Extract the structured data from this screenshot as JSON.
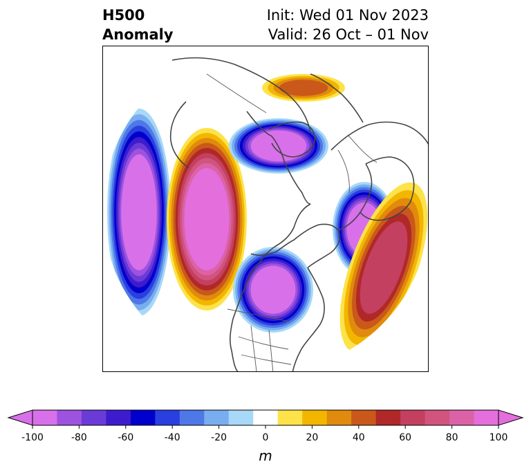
{
  "header": {
    "title_line1": "H500",
    "title_line2": "Anomaly",
    "init_text": "Init: Wed 01 Nov 2023",
    "valid_text": "Valid: 26 Oct – 01 Nov"
  },
  "colorbar": {
    "units": "m",
    "ticks": [
      "-100",
      "-80",
      "-60",
      "-40",
      "-20",
      "0",
      "20",
      "40",
      "60",
      "80",
      "100"
    ],
    "levels": [
      -100,
      -90,
      -80,
      -70,
      -60,
      -50,
      -40,
      -30,
      -20,
      -10,
      10,
      20,
      30,
      40,
      50,
      60,
      70,
      80,
      90,
      100
    ],
    "colors": [
      "#d870ea",
      "#9d52e0",
      "#6b3bd8",
      "#3d1ccd",
      "#0000cc",
      "#2a3fdf",
      "#4e78e8",
      "#78aef0",
      "#a8d8f8",
      "#ffffff",
      "#fde24a",
      "#f2b600",
      "#e08a0e",
      "#c9581a",
      "#b02828",
      "#c44060",
      "#d0547e",
      "#dc62a8",
      "#e46edc"
    ],
    "under_color": "#d870ea",
    "over_color": "#e46edc"
  },
  "anomaly_centers": [
    {
      "name": "pacific-low",
      "sign": "negative",
      "peak_m": -100
    },
    {
      "name": "western-north-america-ridge",
      "sign": "positive",
      "peak_m": 100
    },
    {
      "name": "arctic-low",
      "sign": "negative",
      "peak_m": -100
    },
    {
      "name": "eurasia-low",
      "sign": "negative",
      "peak_m": -100
    },
    {
      "name": "eastern-north-america-low",
      "sign": "negative",
      "peak_m": -100
    },
    {
      "name": "atlantic-ridge",
      "sign": "positive",
      "peak_m": 60
    },
    {
      "name": "siberia-ridge",
      "sign": "positive",
      "peak_m": 40
    }
  ]
}
